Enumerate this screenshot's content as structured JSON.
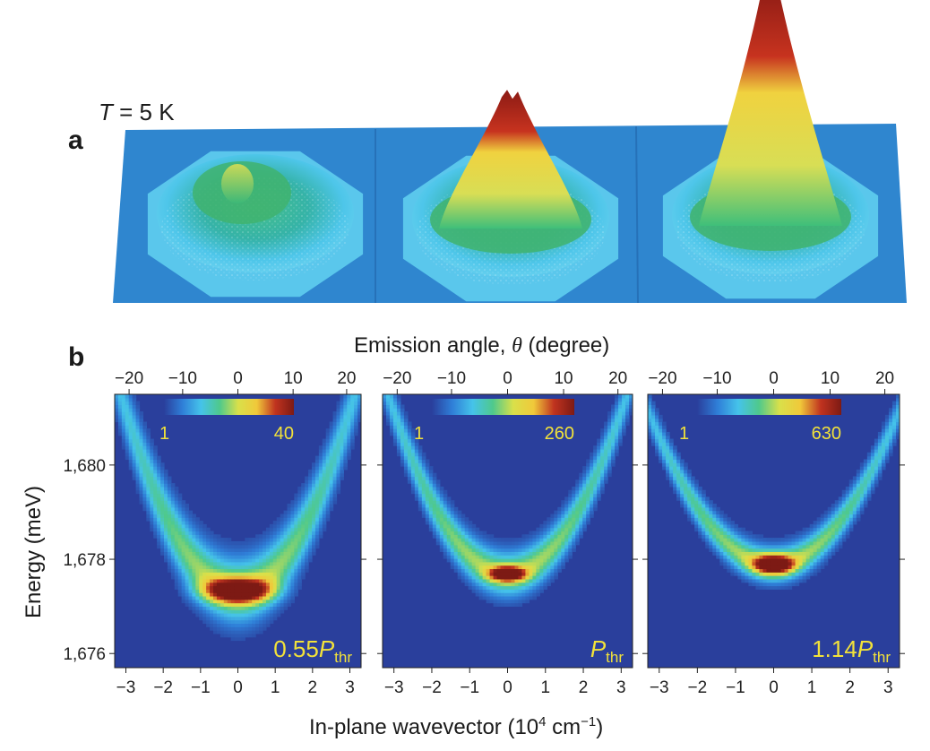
{
  "panel_a": {
    "letter": "a",
    "temperature": {
      "symbol": "T",
      "rest": " = 5 K"
    },
    "surfaces": [
      {
        "name": "low-power-surface",
        "peak_height": 0.12
      },
      {
        "name": "threshold-surface",
        "peak_height": 0.52
      },
      {
        "name": "above-threshold-surface",
        "peak_height": 1.0
      }
    ]
  },
  "panel_b": {
    "letter": "b",
    "top_axis_label_prefix": "Emission angle, ",
    "top_axis_label_symbol": "θ",
    "top_axis_label_suffix": " (degree)",
    "y_axis_label": "Energy (meV)",
    "x_axis_label_main": "In-plane wavevector (10",
    "x_axis_label_exp1": "4",
    "x_axis_label_mid": " cm",
    "x_axis_label_exp2": "−1",
    "x_axis_label_end": ")"
  },
  "colors": {
    "background": "#2a3f9c",
    "scale": [
      "#2a3f9c",
      "#2f7fd8",
      "#45c3ea",
      "#4fc98c",
      "#d9e04a",
      "#f0c93a",
      "#c0331f",
      "#7d1a14"
    ],
    "annotation_yellow": "#f2e23a",
    "surface_base": "#2e86cf"
  },
  "chart_data": [
    {
      "type": "heatmap",
      "x_label": "In-plane wavevector (10^4 cm^-1)",
      "y_label": "Energy (meV)",
      "xlim": [
        -3.3,
        3.3
      ],
      "ylim": [
        1675.7,
        1681.5
      ],
      "x_ticks": [
        -3,
        -2,
        -1,
        0,
        1,
        2,
        3
      ],
      "y_ticks": [
        1676,
        1678,
        1680
      ],
      "y_tick_labels": [
        "1,676",
        "1,678",
        "1,680"
      ],
      "top_ticks": [
        -20,
        -10,
        0,
        10,
        20
      ],
      "top_tick_labels": [
        "−20",
        "−10",
        "0",
        "10",
        "20"
      ],
      "bottom_tick_labels": [
        "−3",
        "−2",
        "−1",
        "0",
        "1",
        "2",
        "3"
      ],
      "colorbar": {
        "min_label": "1",
        "max_label": "40"
      },
      "annotation": {
        "prefix": "0.55",
        "symbol": "P",
        "subscript": "thr"
      },
      "emission": {
        "center_energy": 1677.35,
        "curvature": 0.42,
        "spread": 0.65,
        "peak_width_k": 0.85,
        "peak_width_e": 0.25
      }
    },
    {
      "type": "heatmap",
      "xlim": [
        -3.3,
        3.3
      ],
      "ylim": [
        1675.7,
        1681.5
      ],
      "x_ticks": [
        -3,
        -2,
        -1,
        0,
        1,
        2,
        3
      ],
      "top_ticks": [
        -20,
        -10,
        0,
        10,
        20
      ],
      "top_tick_labels": [
        "−20",
        "−10",
        "0",
        "10",
        "20"
      ],
      "bottom_tick_labels": [
        "−3",
        "−2",
        "−1",
        "0",
        "1",
        "2",
        "3"
      ],
      "colorbar": {
        "min_label": "1",
        "max_label": "260"
      },
      "annotation": {
        "prefix": "",
        "symbol": "P",
        "subscript": "thr"
      },
      "emission": {
        "center_energy": 1677.7,
        "curvature": 0.38,
        "spread": 0.45,
        "peak_width_k": 0.45,
        "peak_width_e": 0.15
      }
    },
    {
      "type": "heatmap",
      "xlim": [
        -3.3,
        3.3
      ],
      "ylim": [
        1675.7,
        1681.5
      ],
      "x_ticks": [
        -3,
        -2,
        -1,
        0,
        1,
        2,
        3
      ],
      "top_ticks": [
        -20,
        -10,
        0,
        10,
        20
      ],
      "top_tick_labels": [
        "−20",
        "−10",
        "0",
        "10",
        "20"
      ],
      "bottom_tick_labels": [
        "−3",
        "−2",
        "−1",
        "0",
        "1",
        "2",
        "3"
      ],
      "colorbar": {
        "min_label": "1",
        "max_label": "630"
      },
      "annotation": {
        "prefix": "1.14",
        "symbol": "P",
        "subscript": "thr"
      },
      "emission": {
        "center_energy": 1677.9,
        "curvature": 0.3,
        "spread": 0.35,
        "peak_width_k": 0.5,
        "peak_width_e": 0.2
      }
    }
  ]
}
